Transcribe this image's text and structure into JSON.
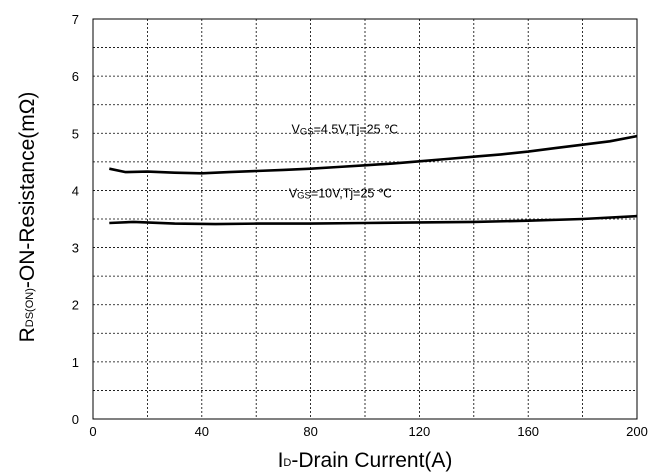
{
  "chart_data": {
    "type": "line",
    "xlabel": {
      "main": "I",
      "sub": "D",
      "rest": "-Drain Current(A)"
    },
    "ylabel": {
      "main": "R",
      "sub": "DS(ON)",
      "rest": "-ON-Resistance(mΩ)"
    },
    "xlim": [
      0,
      200
    ],
    "ylim": [
      0,
      7
    ],
    "xticks": [
      "0",
      "40",
      "80",
      "120",
      "160",
      "200"
    ],
    "xtick_values": [
      0,
      40,
      80,
      120,
      160,
      200
    ],
    "yticks": [
      "0",
      "1",
      "2",
      "3",
      "4",
      "5",
      "6",
      "7"
    ],
    "ytick_values": [
      0,
      1,
      2,
      3,
      4,
      5,
      6,
      7
    ],
    "grid": {
      "x_minor_step": 20,
      "y_step": 0.5,
      "style": "dashed"
    },
    "series": [
      {
        "name": "",
        "x": [
          6,
          12,
          20,
          30,
          40,
          50,
          60,
          70,
          80,
          90,
          100,
          110,
          120,
          130,
          140,
          150,
          160,
          170,
          180,
          190,
          200
        ],
        "values": [
          4.38,
          4.32,
          4.33,
          4.31,
          4.3,
          4.32,
          4.34,
          4.36,
          4.38,
          4.41,
          4.44,
          4.47,
          4.51,
          4.55,
          4.59,
          4.63,
          4.68,
          4.74,
          4.8,
          4.86,
          4.95
        ]
      },
      {
        "name": "",
        "x": [
          6,
          15,
          30,
          45,
          60,
          80,
          100,
          120,
          140,
          160,
          180,
          200
        ],
        "values": [
          3.43,
          3.45,
          3.42,
          3.41,
          3.42,
          3.42,
          3.43,
          3.44,
          3.45,
          3.47,
          3.5,
          3.55
        ]
      }
    ],
    "annotations": [
      {
        "main": "V",
        "sub": "GS",
        "rest": "=4.5V,Tj=25 ℃",
        "x": 73,
        "y": 5.0
      },
      {
        "main": "V",
        "sub": "GS",
        "rest": "=10V,Tj=25 ℃",
        "x": 72,
        "y": 3.88
      }
    ]
  }
}
